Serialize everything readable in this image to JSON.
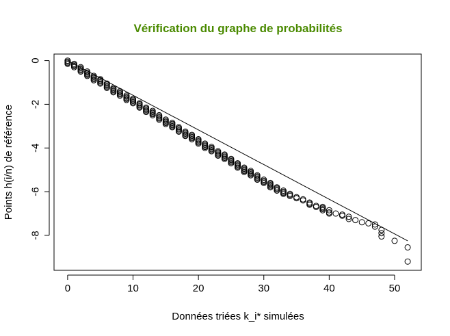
{
  "chart_data": {
    "type": "scatter",
    "title": "Vérification du graphe de probabilités",
    "title_color": "#4a8a00",
    "xlabel": "Données triées k_i* simulées",
    "ylabel": "Points h(i/n) de référence",
    "xlim": [
      -2.08,
      54.08
    ],
    "ylim": [
      -9.6,
      0.3
    ],
    "x_ticks": [
      0,
      10,
      20,
      30,
      40,
      50
    ],
    "x_tick_labels": [
      "0",
      "10",
      "20",
      "30",
      "40",
      "50"
    ],
    "y_ticks": [
      0,
      -2,
      -4,
      -6,
      -8
    ],
    "y_tick_labels": [
      "0",
      "-2",
      "-4",
      "-6",
      "-8"
    ],
    "grid": false,
    "marker": "open-circle",
    "series": [
      {
        "points": [
          [
            0,
            0.0
          ],
          [
            0,
            -0.05
          ],
          [
            0,
            -0.1
          ],
          [
            0,
            -0.15
          ],
          [
            1,
            -0.15
          ],
          [
            1,
            -0.2
          ],
          [
            1,
            -0.25
          ],
          [
            1,
            -0.3
          ],
          [
            2,
            -0.3
          ],
          [
            2,
            -0.35
          ],
          [
            2,
            -0.4
          ],
          [
            2,
            -0.45
          ],
          [
            2,
            -0.5
          ],
          [
            3,
            -0.5
          ],
          [
            3,
            -0.55
          ],
          [
            3,
            -0.6
          ],
          [
            3,
            -0.65
          ],
          [
            3,
            -0.7
          ],
          [
            4,
            -0.7
          ],
          [
            4,
            -0.75
          ],
          [
            4,
            -0.8
          ],
          [
            4,
            -0.85
          ],
          [
            4,
            -0.9
          ],
          [
            5,
            -0.85
          ],
          [
            5,
            -0.9
          ],
          [
            5,
            -0.95
          ],
          [
            5,
            -1.0
          ],
          [
            5,
            -1.05
          ],
          [
            6,
            -1.05
          ],
          [
            6,
            -1.1
          ],
          [
            6,
            -1.15
          ],
          [
            6,
            -1.2
          ],
          [
            6,
            -1.25
          ],
          [
            7,
            -1.25
          ],
          [
            7,
            -1.3
          ],
          [
            7,
            -1.35
          ],
          [
            7,
            -1.4
          ],
          [
            7,
            -1.45
          ],
          [
            8,
            -1.4
          ],
          [
            8,
            -1.45
          ],
          [
            8,
            -1.5
          ],
          [
            8,
            -1.55
          ],
          [
            8,
            -1.6
          ],
          [
            9,
            -1.6
          ],
          [
            9,
            -1.65
          ],
          [
            9,
            -1.7
          ],
          [
            9,
            -1.75
          ],
          [
            9,
            -1.8
          ],
          [
            10,
            -1.75
          ],
          [
            10,
            -1.8
          ],
          [
            10,
            -1.85
          ],
          [
            10,
            -1.9
          ],
          [
            10,
            -1.95
          ],
          [
            11,
            -1.95
          ],
          [
            11,
            -2.0
          ],
          [
            11,
            -2.05
          ],
          [
            11,
            -2.1
          ],
          [
            11,
            -2.15
          ],
          [
            12,
            -2.15
          ],
          [
            12,
            -2.2
          ],
          [
            12,
            -2.25
          ],
          [
            12,
            -2.3
          ],
          [
            12,
            -2.35
          ],
          [
            13,
            -2.3
          ],
          [
            13,
            -2.35
          ],
          [
            13,
            -2.4
          ],
          [
            13,
            -2.45
          ],
          [
            13,
            -2.5
          ],
          [
            14,
            -2.5
          ],
          [
            14,
            -2.55
          ],
          [
            14,
            -2.6
          ],
          [
            14,
            -2.65
          ],
          [
            14,
            -2.7
          ],
          [
            15,
            -2.7
          ],
          [
            15,
            -2.75
          ],
          [
            15,
            -2.8
          ],
          [
            15,
            -2.85
          ],
          [
            15,
            -2.9
          ],
          [
            16,
            -2.85
          ],
          [
            16,
            -2.9
          ],
          [
            16,
            -2.95
          ],
          [
            16,
            -3.0
          ],
          [
            16,
            -3.05
          ],
          [
            17,
            -3.05
          ],
          [
            17,
            -3.1
          ],
          [
            17,
            -3.15
          ],
          [
            17,
            -3.2
          ],
          [
            17,
            -3.25
          ],
          [
            18,
            -3.25
          ],
          [
            18,
            -3.3
          ],
          [
            18,
            -3.35
          ],
          [
            18,
            -3.4
          ],
          [
            18,
            -3.45
          ],
          [
            19,
            -3.4
          ],
          [
            19,
            -3.45
          ],
          [
            19,
            -3.5
          ],
          [
            19,
            -3.55
          ],
          [
            19,
            -3.6
          ],
          [
            20,
            -3.6
          ],
          [
            20,
            -3.65
          ],
          [
            20,
            -3.7
          ],
          [
            20,
            -3.75
          ],
          [
            20,
            -3.8
          ],
          [
            21,
            -3.8
          ],
          [
            21,
            -3.85
          ],
          [
            21,
            -3.9
          ],
          [
            21,
            -3.95
          ],
          [
            21,
            -4.0
          ],
          [
            22,
            -3.95
          ],
          [
            22,
            -4.0
          ],
          [
            22,
            -4.05
          ],
          [
            22,
            -4.1
          ],
          [
            22,
            -4.15
          ],
          [
            23,
            -4.15
          ],
          [
            23,
            -4.2
          ],
          [
            23,
            -4.25
          ],
          [
            23,
            -4.3
          ],
          [
            23,
            -4.35
          ],
          [
            24,
            -4.3
          ],
          [
            24,
            -4.35
          ],
          [
            24,
            -4.4
          ],
          [
            24,
            -4.45
          ],
          [
            24,
            -4.5
          ],
          [
            25,
            -4.5
          ],
          [
            25,
            -4.55
          ],
          [
            25,
            -4.6
          ],
          [
            25,
            -4.65
          ],
          [
            25,
            -4.7
          ],
          [
            26,
            -4.7
          ],
          [
            26,
            -4.75
          ],
          [
            26,
            -4.8
          ],
          [
            26,
            -4.85
          ],
          [
            26,
            -4.9
          ],
          [
            27,
            -4.9
          ],
          [
            27,
            -4.95
          ],
          [
            27,
            -5.0
          ],
          [
            27,
            -5.05
          ],
          [
            27,
            -5.1
          ],
          [
            28,
            -5.05
          ],
          [
            28,
            -5.1
          ],
          [
            28,
            -5.15
          ],
          [
            28,
            -5.2
          ],
          [
            28,
            -5.25
          ],
          [
            29,
            -5.25
          ],
          [
            29,
            -5.3
          ],
          [
            29,
            -5.35
          ],
          [
            29,
            -5.4
          ],
          [
            29,
            -5.45
          ],
          [
            30,
            -5.45
          ],
          [
            30,
            -5.5
          ],
          [
            30,
            -5.55
          ],
          [
            30,
            -5.6
          ],
          [
            31,
            -5.6
          ],
          [
            31,
            -5.65
          ],
          [
            31,
            -5.7
          ],
          [
            31,
            -5.75
          ],
          [
            31,
            -5.8
          ],
          [
            32,
            -5.8
          ],
          [
            32,
            -5.85
          ],
          [
            32,
            -5.9
          ],
          [
            32,
            -5.95
          ],
          [
            33,
            -5.95
          ],
          [
            33,
            -6.0
          ],
          [
            33,
            -6.05
          ],
          [
            33,
            -6.1
          ],
          [
            34,
            -6.1
          ],
          [
            34,
            -6.15
          ],
          [
            34,
            -6.2
          ],
          [
            35,
            -6.25
          ],
          [
            35,
            -6.3
          ],
          [
            36,
            -6.35
          ],
          [
            36,
            -6.4
          ],
          [
            37,
            -6.5
          ],
          [
            37,
            -6.55
          ],
          [
            37,
            -6.6
          ],
          [
            38,
            -6.65
          ],
          [
            38,
            -6.7
          ],
          [
            39,
            -6.7
          ],
          [
            39,
            -6.75
          ],
          [
            39,
            -6.8
          ],
          [
            39,
            -6.85
          ],
          [
            40,
            -6.85
          ],
          [
            40,
            -6.95
          ],
          [
            40,
            -7.0
          ],
          [
            41,
            -7.0
          ],
          [
            42,
            -7.05
          ],
          [
            42,
            -7.1
          ],
          [
            43,
            -7.15
          ],
          [
            43,
            -7.25
          ],
          [
            44,
            -7.3
          ],
          [
            45,
            -7.4
          ],
          [
            46,
            -7.45
          ],
          [
            47,
            -7.5
          ],
          [
            47,
            -7.6
          ],
          [
            48,
            -7.75
          ],
          [
            48,
            -7.9
          ],
          [
            48,
            -8.05
          ],
          [
            50,
            -8.25
          ],
          [
            52,
            -8.55
          ],
          [
            52,
            -9.2
          ]
        ]
      }
    ],
    "fit_line": [
      [
        0,
        0.0
      ],
      [
        52,
        -8.25
      ]
    ]
  }
}
